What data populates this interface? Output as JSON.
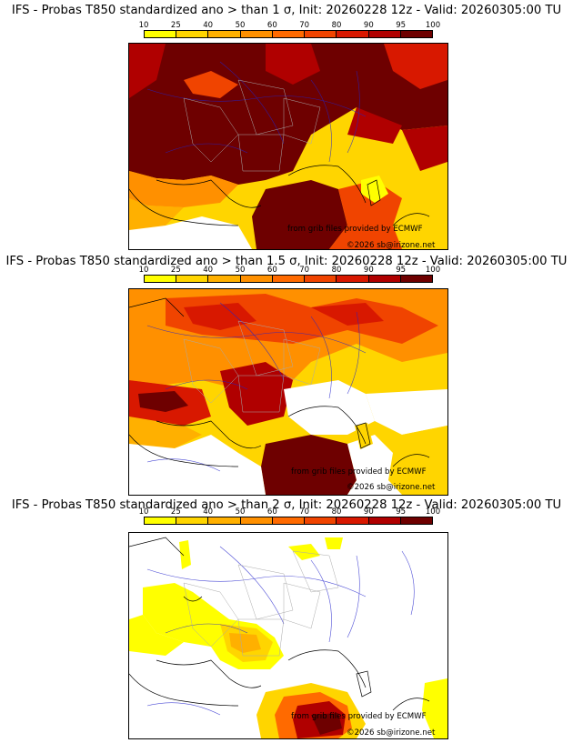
{
  "colorbar": {
    "ticks": [
      "10",
      "25",
      "40",
      "50",
      "60",
      "70",
      "80",
      "90",
      "95",
      "100"
    ],
    "colors": [
      "#ffff00",
      "#ffd500",
      "#ffb000",
      "#ff9000",
      "#ff6a00",
      "#f04400",
      "#d81800",
      "#b00000",
      "#6e0000"
    ]
  },
  "panels": [
    {
      "title": "IFS - Probas T850  standardized ano > than 1 σ, Init: 20260228 12z - Valid: 20260305:00 TU",
      "credit_source": "from grib files provided by ECMWF",
      "credit_site": "©2026 sb@irizone.net"
    },
    {
      "title": "IFS - Probas T850  standardized ano > than 1.5 σ, Init: 20260228 12z - Valid: 20260305:00 TU",
      "credit_source": "from grib files provided by ECMWF",
      "credit_site": "©2026 sb@irizone.net"
    },
    {
      "title": "IFS - Probas T850  standardized ano > than 2 σ, Init: 20260228 12z - Valid: 20260305:00 TU",
      "credit_source": "from grib files provided by ECMWF",
      "credit_site": "©2026 sb@irizone.net"
    }
  ]
}
